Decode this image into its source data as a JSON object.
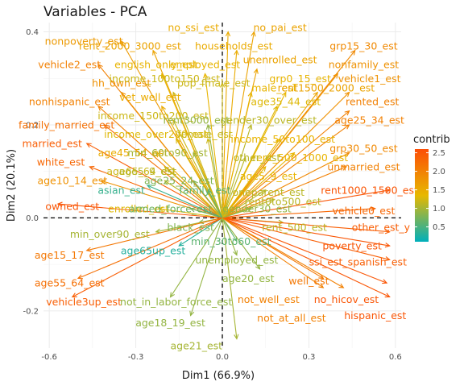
{
  "chart_data": {
    "type": "scatter",
    "title": "Variables - PCA",
    "xlabel": "Dim1 (66.9%)",
    "ylabel": "Dim2 (20.1%)",
    "xlim": [
      -0.62,
      0.62
    ],
    "ylim": [
      -0.28,
      0.42
    ],
    "xticks": [
      -0.6,
      -0.3,
      0.0,
      0.3,
      0.6
    ],
    "xtick_labels": [
      "-0.6",
      "-0.3",
      "0.0",
      "0.3",
      "0.6"
    ],
    "yticks": [
      -0.2,
      0.0,
      0.2,
      0.4
    ],
    "ytick_labels": [
      "-0.2",
      "0.0",
      "0.2",
      "0.4"
    ],
    "grid": true,
    "legend": {
      "title": "contrib",
      "position": "right",
      "range": [
        0.1,
        2.6
      ],
      "ticks": [
        0.5,
        1.0,
        1.5,
        2.0,
        2.5
      ],
      "tick_labels": [
        "0.5",
        "1.0",
        "1.5",
        "2.0",
        "2.5"
      ],
      "colors": [
        "#00AFBB",
        "#E7B800",
        "#FC4E07"
      ]
    },
    "points": [
      {
        "label": "no_ssi_est",
        "x": 0.02,
        "y": 0.4,
        "contrib": 1.5,
        "lx": -0.1,
        "ly": 0.41
      },
      {
        "label": "no_pai_est",
        "x": 0.11,
        "y": 0.4,
        "contrib": 1.6,
        "lx": 0.2,
        "ly": 0.41
      },
      {
        "label": "nonpoverty_est",
        "x": -0.35,
        "y": 0.38,
        "contrib": 1.7,
        "lx": -0.48,
        "ly": 0.38
      },
      {
        "label": "rent_2000_3000_est",
        "x": -0.24,
        "y": 0.36,
        "contrib": 1.6,
        "lx": -0.32,
        "ly": 0.37
      },
      {
        "label": "households_est",
        "x": 0.05,
        "y": 0.36,
        "contrib": 1.5,
        "lx": 0.04,
        "ly": 0.37
      },
      {
        "label": "grp15_30_est",
        "x": 0.46,
        "y": 0.36,
        "contrib": 1.9,
        "lx": 0.49,
        "ly": 0.37
      },
      {
        "label": "vehicle2_est",
        "x": -0.43,
        "y": 0.33,
        "contrib": 2.0,
        "lx": -0.53,
        "ly": 0.33
      },
      {
        "label": "english_only_est",
        "x": -0.21,
        "y": 0.31,
        "contrib": 1.4,
        "lx": -0.23,
        "ly": 0.33
      },
      {
        "label": "employed_est",
        "x": -0.06,
        "y": 0.31,
        "contrib": 1.4,
        "lx": -0.06,
        "ly": 0.33
      },
      {
        "label": "unenrolled_est",
        "x": 0.12,
        "y": 0.32,
        "contrib": 1.6,
        "lx": 0.2,
        "ly": 0.34
      },
      {
        "label": "nonfamily_est",
        "x": 0.4,
        "y": 0.31,
        "contrib": 1.8,
        "lx": 0.49,
        "ly": 0.33
      },
      {
        "label": "hh_own_est",
        "x": -0.35,
        "y": 0.27,
        "contrib": 1.8,
        "lx": -0.35,
        "ly": 0.29
      },
      {
        "label": "income_100to150_est",
        "x": -0.17,
        "y": 0.27,
        "contrib": 1.2,
        "lx": -0.2,
        "ly": 0.3
      },
      {
        "label": "pop_fmale_est",
        "x": 0.0,
        "y": 0.29,
        "contrib": 1.2,
        "lx": -0.03,
        "ly": 0.29
      },
      {
        "label": "grp0_15_est",
        "x": 0.22,
        "y": 0.27,
        "contrib": 1.4,
        "lx": 0.27,
        "ly": 0.3
      },
      {
        "label": "vehicle1_est",
        "x": 0.44,
        "y": 0.27,
        "contrib": 1.8,
        "lx": 0.51,
        "ly": 0.3
      },
      {
        "label": "male_est",
        "x": 0.1,
        "y": 0.27,
        "contrib": 1.4,
        "lx": 0.18,
        "ly": 0.28
      },
      {
        "label": "rent1500_2000_est",
        "x": 0.33,
        "y": 0.27,
        "contrib": 1.6,
        "lx": 0.36,
        "ly": 0.28
      },
      {
        "label": "nonhispanic_est",
        "x": -0.43,
        "y": 0.24,
        "contrib": 2.0,
        "lx": -0.53,
        "ly": 0.25
      },
      {
        "label": "vet_well_est",
        "x": -0.21,
        "y": 0.24,
        "contrib": 1.5,
        "lx": -0.25,
        "ly": 0.26
      },
      {
        "label": "age35_44_est",
        "x": 0.19,
        "y": 0.24,
        "contrib": 1.3,
        "lx": 0.22,
        "ly": 0.25
      },
      {
        "label": "rented_est",
        "x": 0.44,
        "y": 0.23,
        "contrib": 2.0,
        "lx": 0.52,
        "ly": 0.25
      },
      {
        "label": "income_150to200_est",
        "x": -0.17,
        "y": 0.21,
        "contrib": 1.2,
        "lx": -0.24,
        "ly": 0.22
      },
      {
        "label": "rent3000_est",
        "x": -0.05,
        "y": 0.2,
        "contrib": 0.9,
        "lx": -0.09,
        "ly": 0.21
      },
      {
        "label": "gender30_over_est",
        "x": 0.1,
        "y": 0.2,
        "contrib": 1.1,
        "lx": 0.16,
        "ly": 0.21
      },
      {
        "label": "age25_34_est",
        "x": 0.44,
        "y": 0.2,
        "contrib": 2.0,
        "lx": 0.51,
        "ly": 0.21
      },
      {
        "label": "family_married_est",
        "x": -0.41,
        "y": 0.2,
        "contrib": 2.2,
        "lx": -0.54,
        "ly": 0.2
      },
      {
        "label": "income_over200_est",
        "x": -0.16,
        "y": 0.17,
        "contrib": 1.3,
        "lx": -0.23,
        "ly": 0.18
      },
      {
        "label": "female_est",
        "x": -0.05,
        "y": 0.17,
        "contrib": 1.2,
        "lx": -0.06,
        "ly": 0.18
      },
      {
        "label": "income_50to100_est",
        "x": 0.2,
        "y": 0.17,
        "contrib": 1.4,
        "lx": 0.21,
        "ly": 0.17
      },
      {
        "label": "married_est",
        "x": -0.47,
        "y": 0.16,
        "contrib": 2.4,
        "lx": -0.59,
        "ly": 0.16
      },
      {
        "label": "grp30_50_est",
        "x": 0.44,
        "y": 0.14,
        "contrib": 1.9,
        "lx": 0.49,
        "ly": 0.15
      },
      {
        "label": "age45_54_est",
        "x": -0.23,
        "y": 0.14,
        "contrib": 1.5,
        "lx": -0.31,
        "ly": 0.14
      },
      {
        "label": "min_60to90_est",
        "x": -0.1,
        "y": 0.14,
        "contrib": 1.0,
        "lx": -0.19,
        "ly": 0.14
      },
      {
        "label": "rent_500_1000_est",
        "x": 0.25,
        "y": 0.14,
        "contrib": 1.4,
        "lx": 0.27,
        "ly": 0.13
      },
      {
        "label": "other_est",
        "x": 0.08,
        "y": 0.13,
        "contrib": 1.1,
        "lx": 0.12,
        "ly": 0.13
      },
      {
        "label": "unmarried_est",
        "x": 0.43,
        "y": 0.11,
        "contrib": 2.0,
        "lx": 0.49,
        "ly": 0.11
      },
      {
        "label": "white_est",
        "x": -0.46,
        "y": 0.11,
        "contrib": 2.3,
        "lx": -0.56,
        "ly": 0.12
      },
      {
        "label": "age65_64_est",
        "x": -0.2,
        "y": 0.11,
        "contrib": 1.2,
        "lx": -0.28,
        "ly": 0.1
      },
      {
        "label": "age5_9_est",
        "x": 0.15,
        "y": 0.11,
        "contrib": 1.4,
        "lx": 0.16,
        "ly": 0.09
      },
      {
        "label": "age10_14_est",
        "x": -0.42,
        "y": 0.08,
        "contrib": 1.8,
        "lx": -0.52,
        "ly": 0.08
      },
      {
        "label": "age5_9_est",
        "x": -0.2,
        "y": 0.08,
        "contrib": 1.1,
        "lx": -0.26,
        "ly": 0.1
      },
      {
        "label": "age25_24_est",
        "x": -0.1,
        "y": 0.08,
        "contrib": 0.8,
        "lx": -0.15,
        "ly": 0.08
      },
      {
        "label": "asian_est",
        "x": -0.26,
        "y": 0.07,
        "contrib": 0.4,
        "lx": -0.35,
        "ly": 0.06
      },
      {
        "label": "family_est",
        "x": -0.05,
        "y": 0.06,
        "contrib": 0.6,
        "lx": -0.06,
        "ly": 0.06
      },
      {
        "label": "oneparent_est",
        "x": 0.15,
        "y": 0.06,
        "contrib": 1.1,
        "lx": 0.16,
        "ly": 0.055
      },
      {
        "label": "rent1000_1500_est",
        "x": 0.58,
        "y": 0.06,
        "contrib": 2.5,
        "lx": 0.51,
        "ly": 0.06
      },
      {
        "label": "enrolled_est",
        "x": -0.22,
        "y": 0.02,
        "contrib": 1.3,
        "lx": -0.29,
        "ly": 0.02
      },
      {
        "label": "armed_force_est",
        "x": -0.11,
        "y": 0.02,
        "contrib": 0.7,
        "lx": -0.18,
        "ly": 0.02
      },
      {
        "label": "rent0to500_est",
        "x": 0.18,
        "y": 0.04,
        "contrib": 1.1,
        "lx": 0.21,
        "ly": 0.035
      },
      {
        "label": "vehicle0_est",
        "x": 0.53,
        "y": 0.02,
        "contrib": 2.3,
        "lx": 0.49,
        "ly": 0.015
      },
      {
        "label": "owned_est",
        "x": -0.57,
        "y": 0.03,
        "contrib": 2.5,
        "lx": -0.52,
        "ly": 0.025
      },
      {
        "label": "gender30_est",
        "x": 0.1,
        "y": 0.02,
        "contrib": 0.9,
        "lx": 0.12,
        "ly": 0.02
      },
      {
        "label": "black_est",
        "x": -0.08,
        "y": -0.01,
        "contrib": 0.8,
        "lx": -0.11,
        "ly": -0.02
      },
      {
        "label": "rent_500_est",
        "x": 0.21,
        "y": -0.01,
        "contrib": 1.1,
        "lx": 0.25,
        "ly": -0.02
      },
      {
        "label": "other_est_y",
        "x": 0.58,
        "y": -0.03,
        "contrib": 2.4,
        "lx": 0.55,
        "ly": -0.02
      },
      {
        "label": "min_over90_est",
        "x": -0.23,
        "y": -0.03,
        "contrib": 1.0,
        "lx": -0.39,
        "ly": -0.035
      },
      {
        "label": "age65up_est",
        "x": -0.15,
        "y": -0.06,
        "contrib": 0.3,
        "lx": -0.24,
        "ly": -0.07
      },
      {
        "label": "min_30to60_est",
        "x": 0.05,
        "y": -0.05,
        "contrib": 0.6,
        "lx": 0.03,
        "ly": -0.05
      },
      {
        "label": "age15_17_est",
        "x": -0.47,
        "y": -0.07,
        "contrib": 2.1,
        "lx": -0.53,
        "ly": -0.08
      },
      {
        "label": "poverty_est",
        "x": 0.58,
        "y": -0.06,
        "contrib": 2.5,
        "lx": 0.45,
        "ly": -0.06
      },
      {
        "label": "unemployed_est",
        "x": 0.05,
        "y": -0.08,
        "contrib": 0.9,
        "lx": 0.05,
        "ly": -0.09
      },
      {
        "label": "ssi_est_spanish_est",
        "x": 0.58,
        "y": -0.09,
        "contrib": 2.4,
        "lx": 0.47,
        "ly": -0.095
      },
      {
        "label": "age20_est",
        "x": 0.13,
        "y": -0.11,
        "contrib": 0.9,
        "lx": 0.09,
        "ly": -0.13
      },
      {
        "label": "age55_64_est",
        "x": -0.5,
        "y": -0.13,
        "contrib": 2.2,
        "lx": -0.53,
        "ly": -0.14
      },
      {
        "label": "well_est",
        "x": 0.35,
        "y": -0.13,
        "contrib": 2.1,
        "lx": 0.3,
        "ly": -0.135
      },
      {
        "label": "no_hicov_est",
        "x": 0.57,
        "y": -0.14,
        "contrib": 2.5,
        "lx": 0.43,
        "ly": -0.175
      },
      {
        "label": "not_well_est",
        "x": 0.35,
        "y": -0.15,
        "contrib": 2.0,
        "lx": 0.16,
        "ly": -0.175
      },
      {
        "label": "vehicle3up_est",
        "x": -0.52,
        "y": -0.17,
        "contrib": 2.4,
        "lx": -0.48,
        "ly": -0.18
      },
      {
        "label": "not_in_labor_force_est",
        "x": -0.18,
        "y": -0.17,
        "contrib": 0.9,
        "lx": -0.16,
        "ly": -0.18
      },
      {
        "label": "hispanic_est",
        "x": 0.58,
        "y": -0.17,
        "contrib": 2.5,
        "lx": 0.53,
        "ly": -0.21
      },
      {
        "label": "not_at_all_est",
        "x": 0.42,
        "y": -0.15,
        "contrib": 2.0,
        "lx": 0.24,
        "ly": -0.215
      },
      {
        "label": "age18_19_est",
        "x": -0.11,
        "y": -0.21,
        "contrib": 0.9,
        "lx": -0.18,
        "ly": -0.225
      },
      {
        "label": "age21_est",
        "x": 0.05,
        "y": -0.26,
        "contrib": 1.0,
        "lx": -0.09,
        "ly": -0.275
      }
    ]
  }
}
